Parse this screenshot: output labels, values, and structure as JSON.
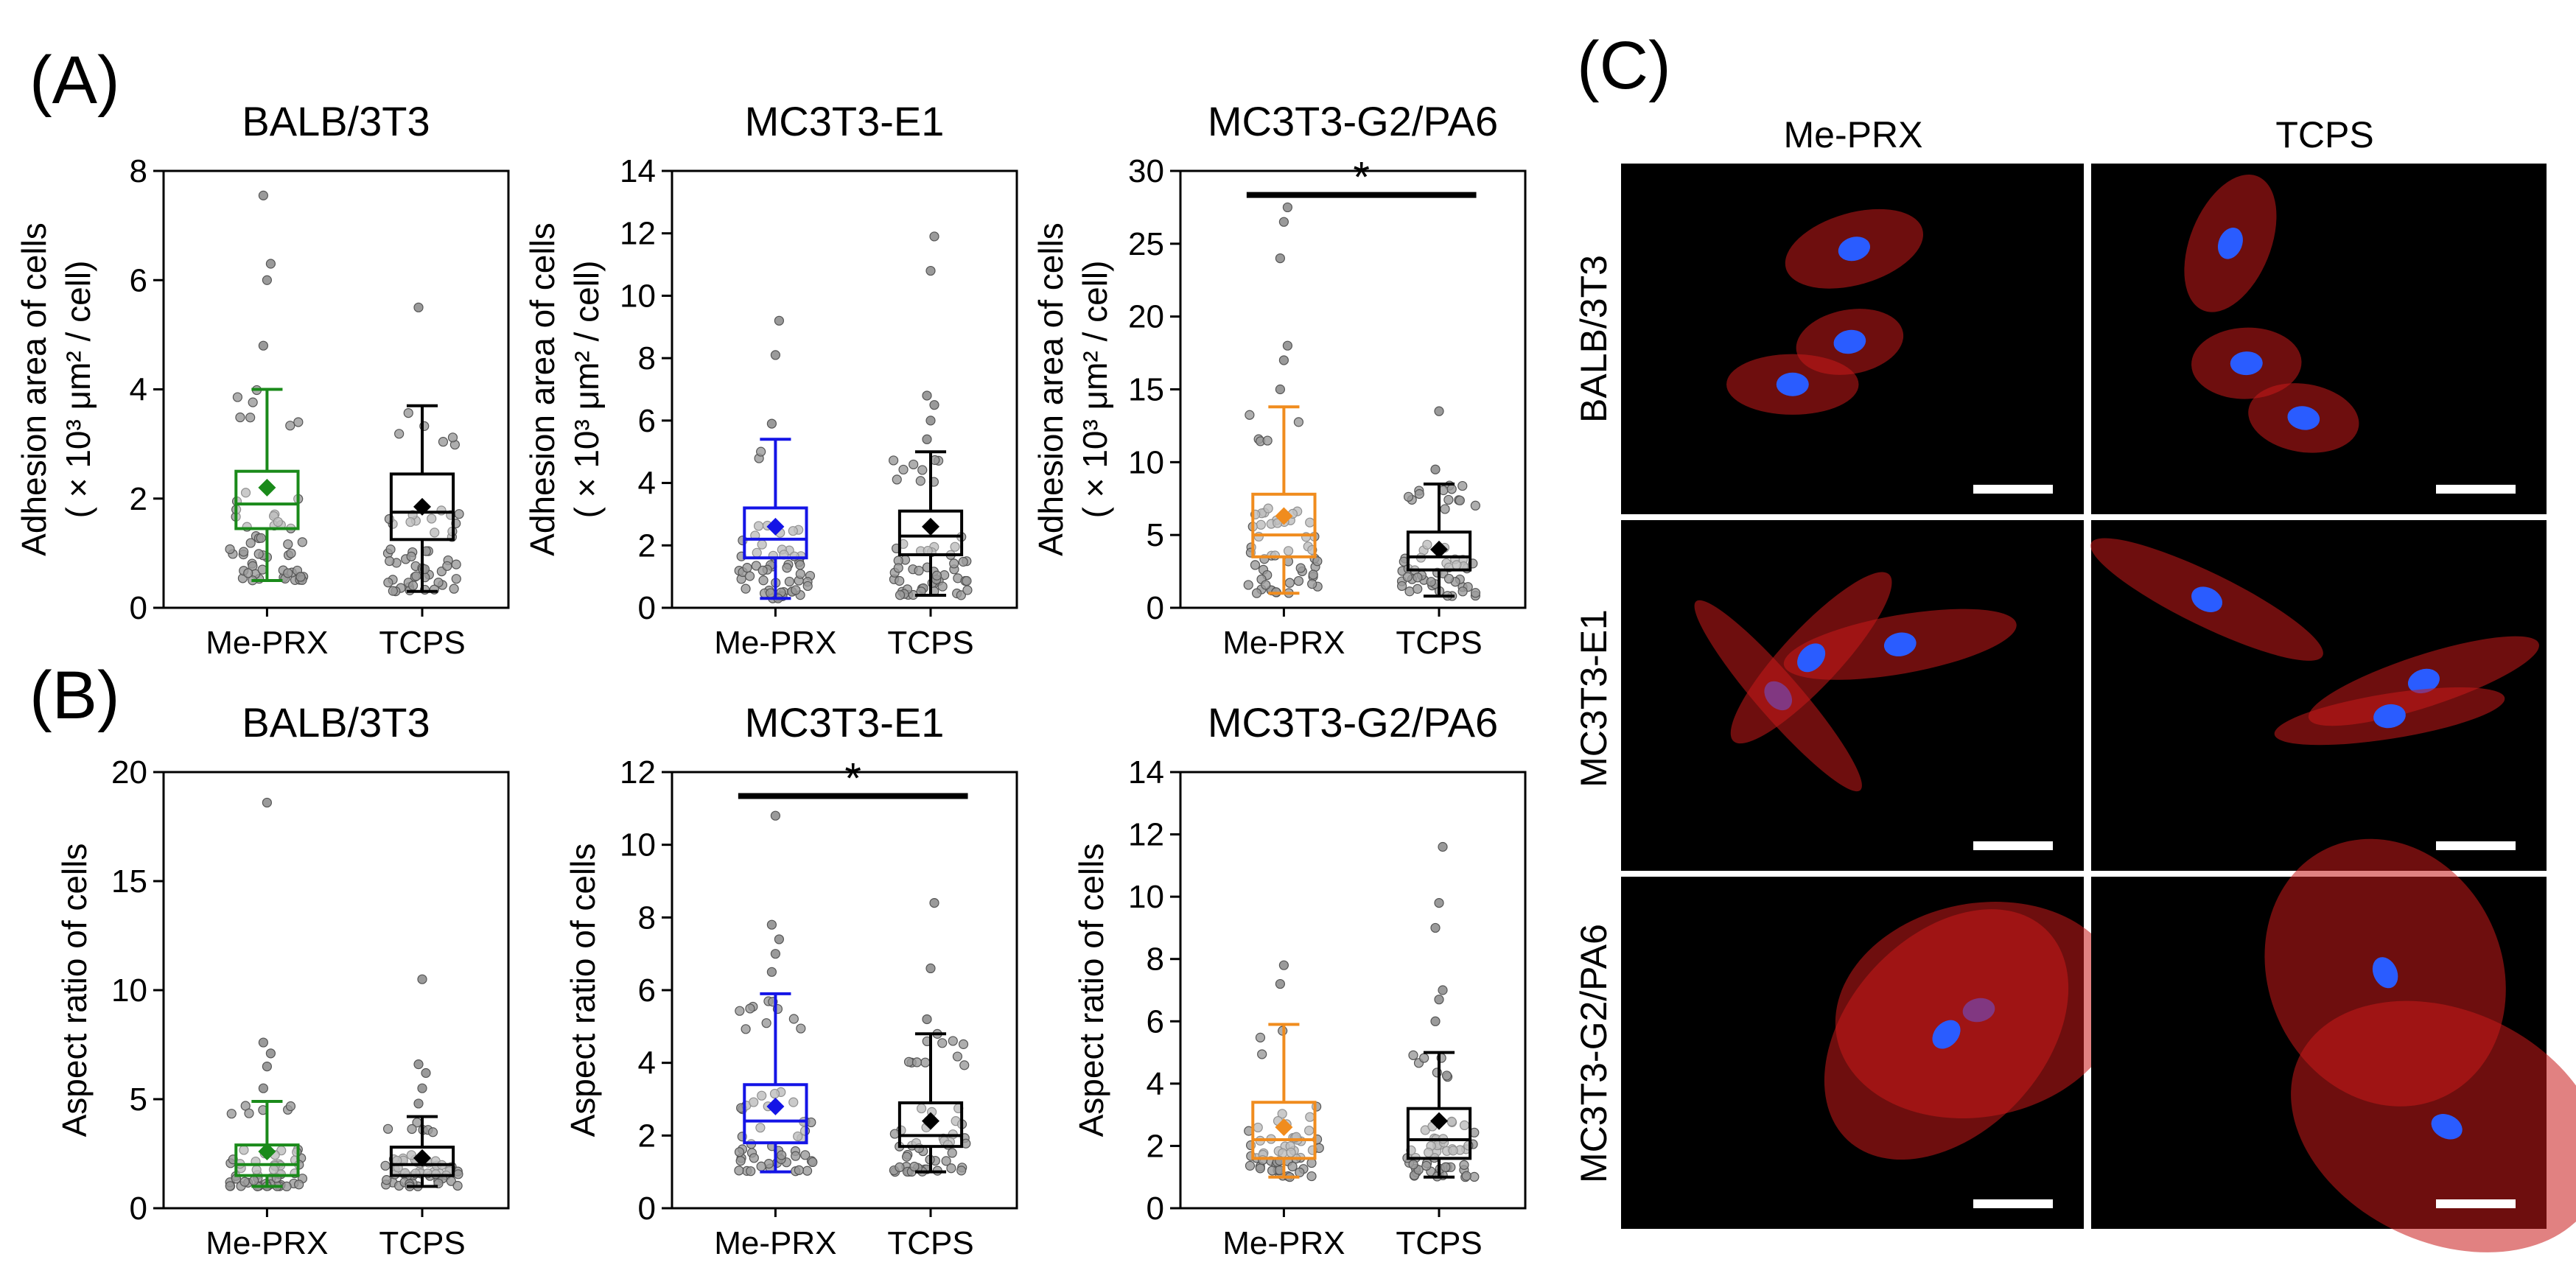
{
  "panel_labels": [
    "(A)",
    "(B)",
    "(C)"
  ],
  "chart_data": [
    {
      "type": "box",
      "panel": "(A)",
      "title": "BALB/3T3",
      "ylabel_line1": "Adhesion area of cells",
      "ylabel_line2": "( × 10³ μm² / cell)",
      "ylim": [
        0,
        8
      ],
      "yticks": [
        0,
        2,
        4,
        6,
        8
      ],
      "categories": [
        "Me-PRX",
        "TCPS"
      ],
      "colors": [
        "#1a8a1a",
        "#000000"
      ],
      "boxes": [
        {
          "q1": 1.45,
          "median": 1.9,
          "q3": 2.5,
          "whisker_low": 0.5,
          "whisker_high": 4.0,
          "mean": 2.2
        },
        {
          "q1": 1.25,
          "median": 1.75,
          "q3": 2.45,
          "whisker_low": 0.3,
          "whisker_high": 3.7,
          "mean": 1.85
        }
      ],
      "outliers": [
        [
          4.8,
          6.0,
          6.3,
          7.55
        ],
        [
          5.5
        ]
      ],
      "significance": ""
    },
    {
      "type": "box",
      "panel": "(A)",
      "title": "MC3T3-E1",
      "ylabel_line1": "Adhesion area of cells",
      "ylabel_line2": "( × 10³ μm² / cell)",
      "ylim": [
        0,
        14
      ],
      "yticks": [
        0,
        2,
        4,
        6,
        8,
        10,
        12,
        14
      ],
      "categories": [
        "Me-PRX",
        "TCPS"
      ],
      "colors": [
        "#1414e6",
        "#000000"
      ],
      "boxes": [
        {
          "q1": 1.6,
          "median": 2.2,
          "q3": 3.2,
          "whisker_low": 0.3,
          "whisker_high": 5.4,
          "mean": 2.6
        },
        {
          "q1": 1.7,
          "median": 2.3,
          "q3": 3.1,
          "whisker_low": 0.4,
          "whisker_high": 5.0,
          "mean": 2.6
        }
      ],
      "outliers": [
        [
          5.9,
          8.1,
          9.2
        ],
        [
          5.4,
          6.0,
          6.5,
          6.8,
          10.8,
          11.9
        ]
      ],
      "significance": ""
    },
    {
      "type": "box",
      "panel": "(A)",
      "title": "MC3T3-G2/PA6",
      "ylabel_line1": "Adhesion area of cells",
      "ylabel_line2": "( × 10³ μm² / cell)",
      "ylim": [
        0,
        30
      ],
      "yticks": [
        0,
        5,
        10,
        15,
        20,
        25,
        30
      ],
      "categories": [
        "Me-PRX",
        "TCPS"
      ],
      "colors": [
        "#f08c1e",
        "#000000"
      ],
      "boxes": [
        {
          "q1": 3.5,
          "median": 5.0,
          "q3": 7.8,
          "whisker_low": 1.0,
          "whisker_high": 13.8,
          "mean": 6.3
        },
        {
          "q1": 2.6,
          "median": 3.5,
          "q3": 5.2,
          "whisker_low": 0.8,
          "whisker_high": 8.5,
          "mean": 4.0
        }
      ],
      "outliers": [
        [
          15.0,
          17.0,
          18.0,
          24.0,
          26.5,
          27.5
        ],
        [
          9.5,
          13.5
        ]
      ],
      "significance": "*"
    },
    {
      "type": "box",
      "panel": "(B)",
      "title": "BALB/3T3",
      "ylabel_line1": "Aspect ratio of cells",
      "ylim": [
        0,
        20
      ],
      "yticks": [
        0,
        5,
        10,
        15,
        20
      ],
      "categories": [
        "Me-PRX",
        "TCPS"
      ],
      "colors": [
        "#1a8a1a",
        "#000000"
      ],
      "boxes": [
        {
          "q1": 1.5,
          "median": 2.0,
          "q3": 2.9,
          "whisker_low": 1.0,
          "whisker_high": 4.9,
          "mean": 2.6
        },
        {
          "q1": 1.5,
          "median": 2.0,
          "q3": 2.8,
          "whisker_low": 1.0,
          "whisker_high": 4.2,
          "mean": 2.3
        }
      ],
      "outliers": [
        [
          5.5,
          6.5,
          7.1,
          7.6,
          18.6
        ],
        [
          4.8,
          5.5,
          6.2,
          6.6,
          10.5
        ]
      ],
      "significance": ""
    },
    {
      "type": "box",
      "panel": "(B)",
      "title": "MC3T3-E1",
      "ylabel_line1": "Aspect ratio of cells",
      "ylim": [
        0,
        12
      ],
      "yticks": [
        0,
        2,
        4,
        6,
        8,
        10,
        12
      ],
      "categories": [
        "Me-PRX",
        "TCPS"
      ],
      "colors": [
        "#1414e6",
        "#000000"
      ],
      "boxes": [
        {
          "q1": 1.8,
          "median": 2.4,
          "q3": 3.4,
          "whisker_low": 1.0,
          "whisker_high": 5.9,
          "mean": 2.8
        },
        {
          "q1": 1.7,
          "median": 2.0,
          "q3": 2.9,
          "whisker_low": 1.0,
          "whisker_high": 4.8,
          "mean": 2.4
        }
      ],
      "outliers": [
        [
          6.5,
          7.0,
          7.4,
          7.8,
          10.8
        ],
        [
          5.2,
          6.6,
          8.4
        ]
      ],
      "significance": "*"
    },
    {
      "type": "box",
      "panel": "(B)",
      "title": "MC3T3-G2/PA6",
      "ylabel_line1": "Aspect ratio of cells",
      "ylim": [
        0,
        14
      ],
      "yticks": [
        0,
        2,
        4,
        6,
        8,
        10,
        12,
        14
      ],
      "categories": [
        "Me-PRX",
        "TCPS"
      ],
      "colors": [
        "#f08c1e",
        "#000000"
      ],
      "boxes": [
        {
          "q1": 1.6,
          "median": 2.2,
          "q3": 3.4,
          "whisker_low": 1.0,
          "whisker_high": 5.9,
          "mean": 2.6
        },
        {
          "q1": 1.6,
          "median": 2.2,
          "q3": 3.2,
          "whisker_low": 1.0,
          "whisker_high": 5.0,
          "mean": 2.8
        }
      ],
      "outliers": [
        [
          7.2,
          7.8
        ],
        [
          6.0,
          6.7,
          7.0,
          9.0,
          9.8,
          11.6
        ]
      ],
      "significance": ""
    }
  ],
  "micrographs": {
    "column_labels": [
      "Me-PRX",
      "TCPS"
    ],
    "row_labels": [
      "BALB/3T3",
      "MC3T3-E1",
      "MC3T3-G2/PA6"
    ],
    "actin_color": "#c81a1a",
    "nucleus_color": "#2a5cff",
    "scale_bar_color": "#ffffff"
  }
}
